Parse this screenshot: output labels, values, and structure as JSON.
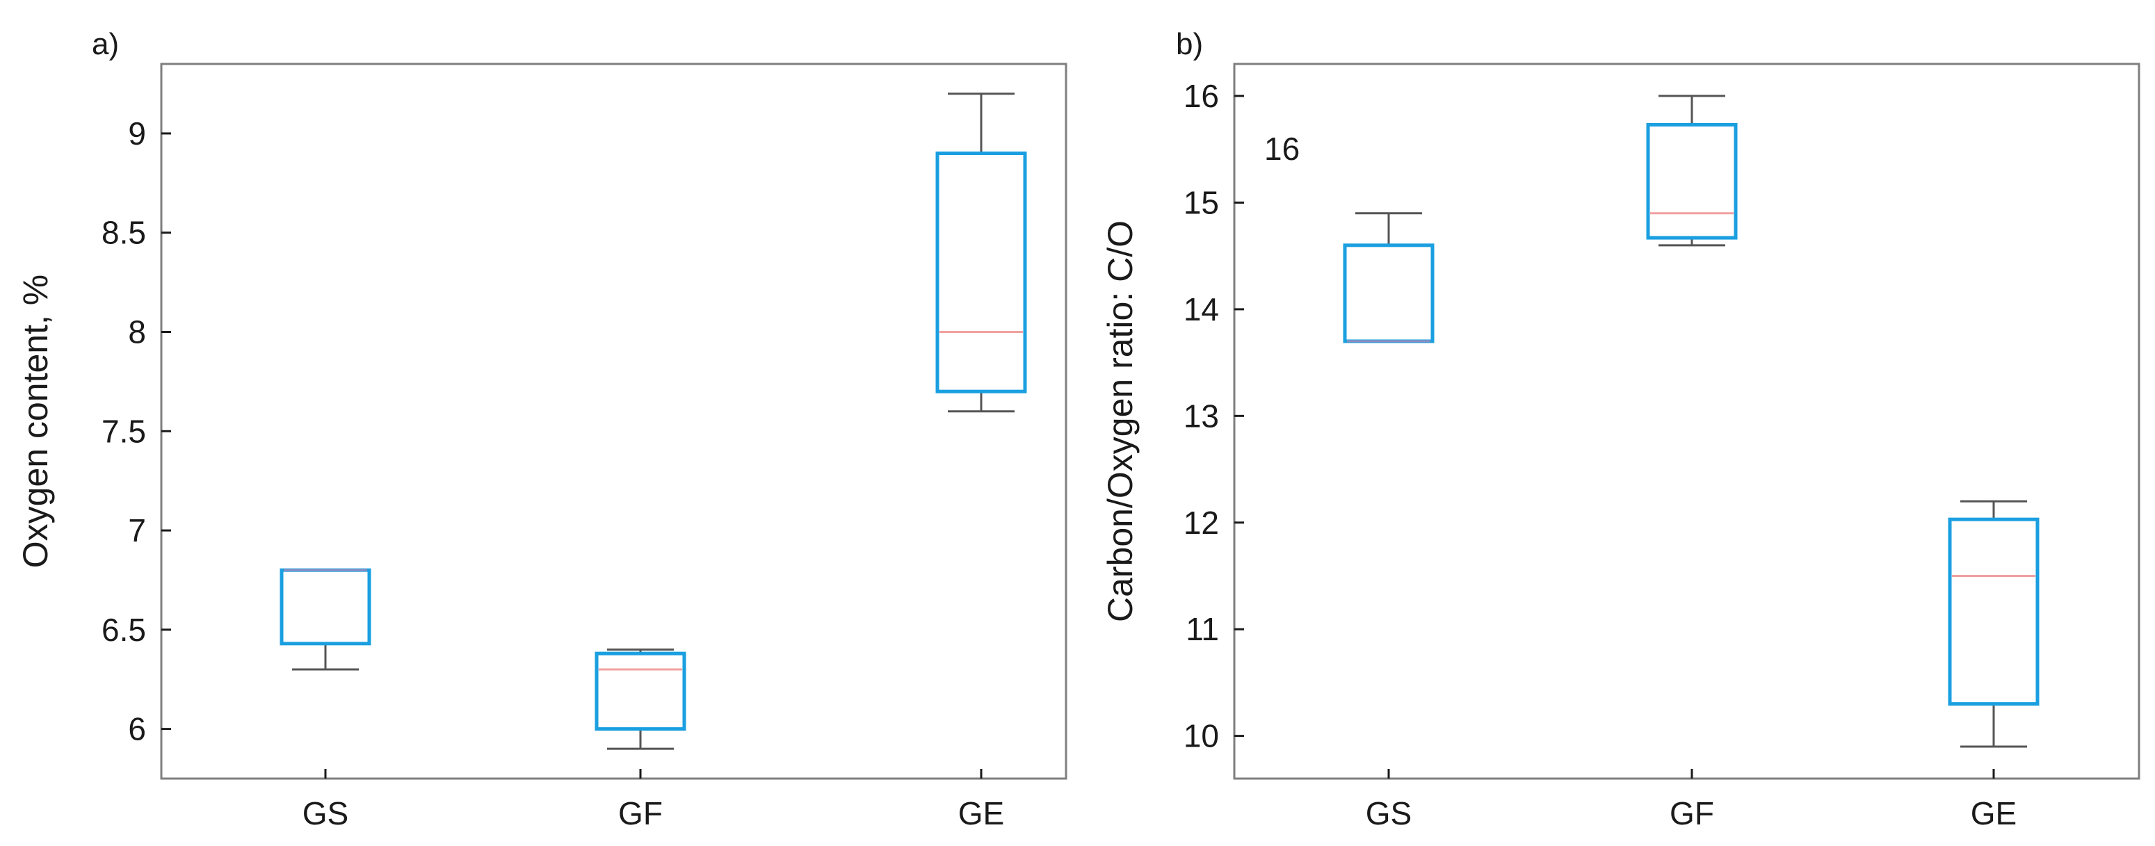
{
  "chart_data": [
    {
      "panel_label": "a)",
      "type": "box",
      "ylabel": "Oxygen content, %",
      "xlabel": "",
      "categories": [
        "GS",
        "GF",
        "GE"
      ],
      "ylim": [
        5.75,
        9.35
      ],
      "yticks": [
        6,
        6.5,
        7,
        7.5,
        8,
        8.5,
        9
      ],
      "ytick_labels": [
        "6",
        "6.5",
        "7",
        "7.5",
        "8",
        "8.5",
        "9"
      ],
      "boxes": [
        {
          "category": "GS",
          "whisker_low": 6.3,
          "q1": 6.43,
          "median": 6.8,
          "q3": 6.8,
          "whisker_high": 6.8
        },
        {
          "category": "GF",
          "whisker_low": 5.9,
          "q1": 6.0,
          "median": 6.3,
          "q3": 6.38,
          "whisker_high": 6.4
        },
        {
          "category": "GE",
          "whisker_low": 7.6,
          "q1": 7.7,
          "median": 8.0,
          "q3": 8.9,
          "whisker_high": 9.2
        }
      ],
      "annotations": []
    },
    {
      "panel_label": "b)",
      "type": "box",
      "ylabel": "Carbon/Oxygen ratio: C/O",
      "xlabel": "",
      "categories": [
        "GS",
        "GF",
        "GE"
      ],
      "ylim": [
        9.6,
        16.3
      ],
      "yticks": [
        10,
        11,
        12,
        13,
        14,
        15,
        16
      ],
      "ytick_labels": [
        "10",
        "11",
        "12",
        "13",
        "14",
        "15",
        "16"
      ],
      "boxes": [
        {
          "category": "GS",
          "whisker_low": 13.7,
          "q1": 13.7,
          "median": 13.7,
          "q3": 14.6,
          "whisker_high": 14.9
        },
        {
          "category": "GF",
          "whisker_low": 14.6,
          "q1": 14.67,
          "median": 14.9,
          "q3": 15.73,
          "whisker_high": 16.0
        },
        {
          "category": "GE",
          "whisker_low": 9.9,
          "q1": 10.3,
          "median": 11.5,
          "q3": 12.03,
          "whisker_high": 12.2
        }
      ],
      "annotations": [
        "16"
      ]
    }
  ],
  "style": {
    "box_color": "#1a9fe0",
    "median_color": "#f2a0a0",
    "collapsed_median_color": "#8e8ec0",
    "whisker_color": "#555555",
    "frame_color": "#7f7f7f"
  }
}
